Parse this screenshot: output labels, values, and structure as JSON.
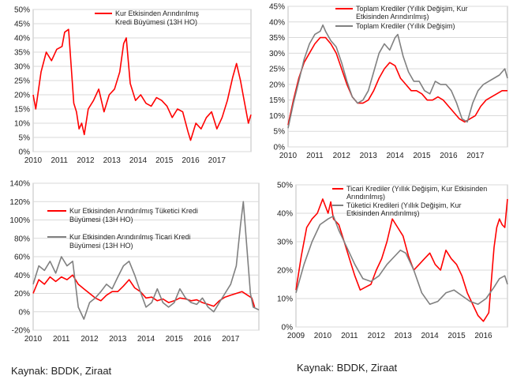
{
  "source_left": "Kaynak: BDDK, Ziraat",
  "source_right": "Kaynak: BDDK, Ziraat",
  "chart_data": [
    {
      "type": "line",
      "ylim": [
        0,
        50
      ],
      "y_ticks": [
        "0%",
        "5%",
        "10%",
        "15%",
        "20%",
        "25%",
        "30%",
        "35%",
        "40%",
        "45%",
        "50%"
      ],
      "x_ticks": [
        "2010",
        "2011",
        "2012",
        "2013",
        "2014",
        "2015",
        "2016",
        "2017"
      ],
      "x_range": [
        2010,
        2018.3
      ],
      "series": [
        {
          "name": "Kur Etkisinden Arındırılmış Kredi Büyümesi (13H HO)",
          "color": "#ff0000",
          "x": [
            2010,
            2010.1,
            2010.3,
            2010.5,
            2010.7,
            2010.9,
            2011.1,
            2011.2,
            2011.35,
            2011.45,
            2011.55,
            2011.65,
            2011.75,
            2011.85,
            2011.95,
            2012.1,
            2012.3,
            2012.5,
            2012.7,
            2012.9,
            2013.1,
            2013.3,
            2013.45,
            2013.55,
            2013.7,
            2013.9,
            2014.1,
            2014.3,
            2014.5,
            2014.7,
            2014.9,
            2015.1,
            2015.3,
            2015.5,
            2015.7,
            2015.9,
            2016.0,
            2016.2,
            2016.4,
            2016.6,
            2016.8,
            2017.0,
            2017.2,
            2017.4,
            2017.6,
            2017.75,
            2017.9,
            2018.0,
            2018.2,
            2018.3
          ],
          "y": [
            20,
            15,
            28,
            35,
            32,
            36,
            37,
            42,
            43,
            30,
            17,
            14,
            8,
            10,
            6,
            15,
            18,
            22,
            14,
            20,
            22,
            28,
            38,
            40,
            24,
            18,
            20,
            17,
            16,
            19,
            18,
            16,
            12,
            15,
            14,
            7,
            4,
            10,
            8,
            12,
            14,
            8,
            12,
            18,
            26,
            31,
            25,
            20,
            10,
            13
          ]
        }
      ]
    },
    {
      "type": "line",
      "ylim": [
        0,
        45
      ],
      "y_ticks": [
        "0%",
        "5%",
        "10%",
        "15%",
        "20%",
        "25%",
        "30%",
        "35%",
        "40%",
        "45%"
      ],
      "x_ticks": [
        "2010",
        "2011",
        "2012",
        "2013",
        "2014",
        "2015",
        "2016",
        "2017"
      ],
      "x_range": [
        2010,
        2018.2
      ],
      "series": [
        {
          "name": "Toplam Krediler (Yıllık Değişim, Kur Etkisinden Arındırılmış)",
          "color": "#ff0000",
          "x": [
            2010,
            2010.2,
            2010.4,
            2010.6,
            2010.8,
            2011.0,
            2011.2,
            2011.4,
            2011.6,
            2011.8,
            2012.0,
            2012.2,
            2012.4,
            2012.6,
            2012.8,
            2013.0,
            2013.2,
            2013.4,
            2013.6,
            2013.8,
            2014.0,
            2014.2,
            2014.4,
            2014.6,
            2014.8,
            2015.0,
            2015.2,
            2015.4,
            2015.6,
            2015.8,
            2016.0,
            2016.2,
            2016.4,
            2016.6,
            2016.8,
            2017.0,
            2017.2,
            2017.4,
            2017.6,
            2017.8,
            2018.0,
            2018.2
          ],
          "y": [
            7,
            15,
            22,
            27,
            30,
            33,
            35,
            35,
            33,
            30,
            25,
            20,
            16,
            14,
            14,
            15,
            18,
            22,
            25,
            27,
            26,
            22,
            20,
            18,
            18,
            17,
            15,
            15,
            16,
            15,
            13,
            11,
            9,
            8,
            9,
            10,
            13,
            15,
            16,
            17,
            18,
            18
          ]
        },
        {
          "name": "Toplam Krediler (Yıllık Değişim)",
          "color": "#808080",
          "x": [
            2010,
            2010.2,
            2010.4,
            2010.6,
            2010.8,
            2011.0,
            2011.2,
            2011.3,
            2011.4,
            2011.6,
            2011.8,
            2012.0,
            2012.2,
            2012.4,
            2012.6,
            2012.8,
            2013.0,
            2013.2,
            2013.4,
            2013.6,
            2013.8,
            2014.0,
            2014.1,
            2014.3,
            2014.5,
            2014.7,
            2014.9,
            2015.1,
            2015.3,
            2015.5,
            2015.7,
            2015.9,
            2016.1,
            2016.3,
            2016.5,
            2016.7,
            2016.9,
            2017.1,
            2017.3,
            2017.5,
            2017.7,
            2017.9,
            2018.1,
            2018.2
          ],
          "y": [
            6,
            14,
            21,
            28,
            33,
            36,
            37,
            39,
            37,
            34,
            32,
            27,
            21,
            16,
            14,
            15,
            18,
            24,
            30,
            33,
            31,
            35,
            36,
            29,
            24,
            21,
            21,
            18,
            17,
            21,
            20,
            20,
            18,
            14,
            9,
            8,
            14,
            18,
            20,
            21,
            22,
            23,
            25,
            22
          ]
        }
      ]
    },
    {
      "type": "line",
      "ylim": [
        -20,
        140
      ],
      "y_ticks": [
        "-20%",
        "0%",
        "20%",
        "40%",
        "60%",
        "80%",
        "100%",
        "120%",
        "140%"
      ],
      "x_ticks": [
        "2010",
        "2011",
        "2012",
        "2013",
        "2014",
        "2015",
        "2016",
        "2017"
      ],
      "x_range": [
        2010,
        2018.0
      ],
      "series": [
        {
          "name": "Kur Etkisinden Arındırılmış Tüketici Kredi Büyümesi (13H HO)",
          "color": "#ff0000",
          "x": [
            2010,
            2010.2,
            2010.4,
            2010.6,
            2010.8,
            2011.0,
            2011.2,
            2011.4,
            2011.6,
            2011.8,
            2012.0,
            2012.2,
            2012.4,
            2012.6,
            2012.8,
            2013.0,
            2013.2,
            2013.4,
            2013.6,
            2013.8,
            2014.0,
            2014.2,
            2014.4,
            2014.6,
            2014.8,
            2015.0,
            2015.2,
            2015.4,
            2015.6,
            2015.8,
            2016.0,
            2016.2,
            2016.4,
            2016.6,
            2016.8,
            2017.0,
            2017.2,
            2017.4,
            2017.6,
            2017.75,
            2017.85
          ],
          "y": [
            20,
            35,
            30,
            38,
            33,
            38,
            35,
            40,
            30,
            25,
            20,
            15,
            12,
            18,
            22,
            22,
            28,
            35,
            26,
            22,
            15,
            16,
            12,
            14,
            10,
            12,
            15,
            14,
            12,
            13,
            10,
            8,
            6,
            12,
            16,
            18,
            20,
            22,
            18,
            15,
            5
          ]
        },
        {
          "name": "Kur Etkisinden Arındırılmış Ticari Kredi Büyümesi (13H HO)",
          "color": "#808080",
          "x": [
            2010,
            2010.2,
            2010.4,
            2010.6,
            2010.8,
            2011.0,
            2011.2,
            2011.4,
            2011.6,
            2011.8,
            2012.0,
            2012.2,
            2012.4,
            2012.6,
            2012.8,
            2013.0,
            2013.2,
            2013.4,
            2013.6,
            2013.8,
            2014.0,
            2014.2,
            2014.4,
            2014.6,
            2014.8,
            2015.0,
            2015.2,
            2015.4,
            2015.6,
            2015.8,
            2016.0,
            2016.2,
            2016.4,
            2016.6,
            2016.8,
            2017.0,
            2017.2,
            2017.35,
            2017.45,
            2017.55,
            2017.7,
            2017.8,
            2018.0
          ],
          "y": [
            30,
            50,
            45,
            55,
            42,
            60,
            50,
            55,
            5,
            -8,
            10,
            15,
            22,
            30,
            25,
            38,
            50,
            55,
            40,
            22,
            5,
            10,
            25,
            10,
            5,
            10,
            25,
            15,
            10,
            8,
            15,
            5,
            0,
            10,
            20,
            30,
            50,
            95,
            120,
            80,
            20,
            5,
            2
          ]
        }
      ]
    },
    {
      "type": "line",
      "ylim": [
        0,
        50
      ],
      "y_ticks": [
        "0%",
        "10%",
        "20%",
        "30%",
        "40%",
        "50%"
      ],
      "x_ticks": [
        "2009",
        "2010",
        "2011",
        "2012",
        "2013",
        "2014",
        "2015",
        "2016"
      ],
      "x_range": [
        2009,
        2016.9
      ],
      "series": [
        {
          "name": "Ticari Krediler (Yıllık Değişim, Kur Etkisinden Arındırılmış)",
          "color": "#ff0000",
          "x": [
            2009,
            2009.2,
            2009.4,
            2009.6,
            2009.8,
            2010.0,
            2010.2,
            2010.3,
            2010.4,
            2010.6,
            2010.8,
            2011.0,
            2011.2,
            2011.4,
            2011.6,
            2011.8,
            2012.0,
            2012.2,
            2012.4,
            2012.6,
            2012.8,
            2013.0,
            2013.2,
            2013.4,
            2013.6,
            2013.8,
            2014.0,
            2014.2,
            2014.4,
            2014.6,
            2014.8,
            2015.0,
            2015.2,
            2015.4,
            2015.6,
            2015.8,
            2016.0,
            2016.2,
            2016.4,
            2016.5,
            2016.6,
            2016.7,
            2016.8,
            2016.9
          ],
          "y": [
            13,
            25,
            35,
            38,
            40,
            45,
            40,
            44,
            38,
            36,
            30,
            24,
            18,
            13,
            14,
            15,
            20,
            24,
            30,
            38,
            35,
            32,
            25,
            20,
            22,
            24,
            26,
            22,
            20,
            27,
            24,
            22,
            18,
            12,
            8,
            4,
            2,
            5,
            28,
            35,
            38,
            36,
            35,
            45
          ]
        },
        {
          "name": "Tüketici Kredileri (Yıllık Değişim, Kur Etkisinden Arındırılmış)",
          "color": "#808080",
          "x": [
            2009,
            2009.3,
            2009.6,
            2009.9,
            2010.2,
            2010.4,
            2010.6,
            2010.9,
            2011.2,
            2011.5,
            2011.8,
            2012.1,
            2012.4,
            2012.7,
            2012.9,
            2013.1,
            2013.4,
            2013.7,
            2014.0,
            2014.3,
            2014.6,
            2014.9,
            2015.2,
            2015.5,
            2015.8,
            2016.1,
            2016.4,
            2016.6,
            2016.8,
            2016.9
          ],
          "y": [
            12,
            22,
            30,
            36,
            38,
            39,
            34,
            28,
            22,
            17,
            16,
            18,
            22,
            25,
            27,
            26,
            20,
            12,
            8,
            9,
            12,
            13,
            11,
            9,
            8,
            10,
            14,
            17,
            18,
            15
          ]
        }
      ]
    }
  ]
}
